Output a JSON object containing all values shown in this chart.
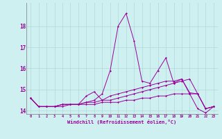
{
  "xlabel": "Windchill (Refroidissement éolien,°C)",
  "background_color": "#cff0f0",
  "grid_color": "#b0d8d8",
  "line_color": "#990099",
  "x": [
    0,
    1,
    2,
    3,
    4,
    5,
    6,
    7,
    8,
    9,
    10,
    11,
    12,
    13,
    14,
    15,
    16,
    17,
    18,
    19,
    20,
    21,
    22,
    23
  ],
  "series1": [
    14.6,
    14.2,
    14.2,
    14.2,
    14.3,
    14.3,
    14.3,
    14.4,
    14.5,
    14.8,
    15.9,
    18.0,
    18.6,
    17.3,
    15.4,
    15.3,
    15.9,
    16.5,
    15.3,
    15.5,
    14.8,
    14.1,
    13.9,
    14.2
  ],
  "series2": [
    14.6,
    14.2,
    14.2,
    14.2,
    14.3,
    14.3,
    14.3,
    14.7,
    14.9,
    14.5,
    14.7,
    14.8,
    14.9,
    15.0,
    15.1,
    15.2,
    15.3,
    15.4,
    15.4,
    15.5,
    14.85,
    14.8,
    14.1,
    14.2
  ],
  "series3": [
    14.6,
    14.2,
    14.2,
    14.2,
    14.3,
    14.3,
    14.3,
    14.4,
    14.4,
    14.5,
    14.5,
    14.6,
    14.7,
    14.8,
    14.9,
    15.0,
    15.1,
    15.2,
    15.3,
    15.4,
    15.5,
    14.8,
    14.1,
    14.2
  ],
  "series4": [
    14.6,
    14.2,
    14.2,
    14.2,
    14.2,
    14.3,
    14.3,
    14.3,
    14.3,
    14.4,
    14.4,
    14.4,
    14.5,
    14.5,
    14.6,
    14.6,
    14.7,
    14.7,
    14.8,
    14.8,
    14.8,
    14.8,
    14.1,
    14.2
  ],
  "ylim": [
    13.85,
    19.1
  ],
  "yticks": [
    14,
    15,
    16,
    17,
    18
  ],
  "xticks": [
    0,
    1,
    2,
    3,
    4,
    5,
    6,
    7,
    8,
    9,
    10,
    11,
    12,
    13,
    14,
    15,
    16,
    17,
    18,
    19,
    20,
    21,
    22,
    23
  ]
}
